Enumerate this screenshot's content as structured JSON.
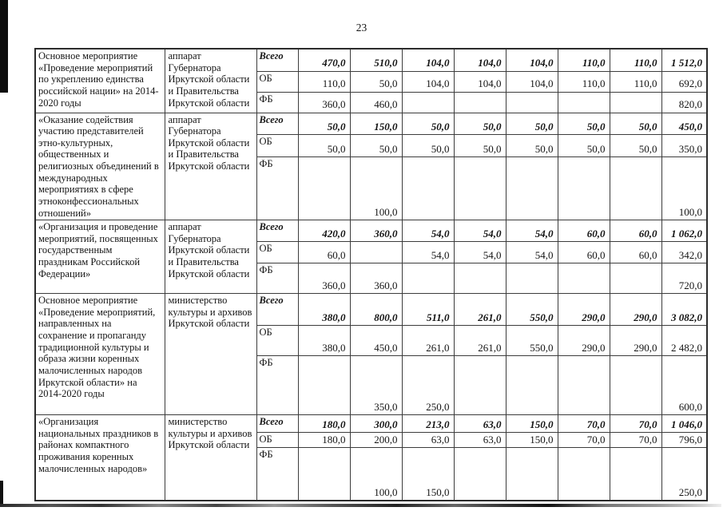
{
  "page": {
    "number": "23"
  },
  "table": {
    "budget_labels": [
      "Всего",
      "ОБ",
      "ФБ"
    ],
    "rows": [
      {
        "name": "Основное мероприятие «Проведение мероприятий по укреплению единства российской нации» на 2014-2020 годы",
        "agency": "аппарат Губернатора Иркутской области и Правительства Иркутской области",
        "vsego": [
          "470,0",
          "510,0",
          "104,0",
          "104,0",
          "104,0",
          "110,0",
          "110,0",
          "1 512,0"
        ],
        "ob": [
          "110,0",
          "50,0",
          "104,0",
          "104,0",
          "104,0",
          "110,0",
          "110,0",
          "692,0"
        ],
        "fb": [
          "360,0",
          "460,0",
          "",
          "",
          "",
          "",
          "",
          "820,0"
        ]
      },
      {
        "name": "«Оказание содействия участию представителей этно-культурных, общественных и религиозных объединений в международных мероприятиях в сфере этноконфессиональных отношений»",
        "agency": "аппарат Губернатора Иркутской области и Правительства Иркутской области",
        "vsego": [
          "50,0",
          "150,0",
          "50,0",
          "50,0",
          "50,0",
          "50,0",
          "50,0",
          "450,0"
        ],
        "ob": [
          "50,0",
          "50,0",
          "50,0",
          "50,0",
          "50,0",
          "50,0",
          "50,0",
          "350,0"
        ],
        "fb": [
          "",
          "100,0",
          "",
          "",
          "",
          "",
          "",
          "100,0"
        ]
      },
      {
        "name": "«Организация и проведение мероприятий, посвященных государственным праздникам Российской Федерации»",
        "agency": "аппарат Губернатора Иркутской области и Правительства Иркутской области",
        "vsego": [
          "420,0",
          "360,0",
          "54,0",
          "54,0",
          "54,0",
          "60,0",
          "60,0",
          "1 062,0"
        ],
        "ob": [
          "60,0",
          "",
          "54,0",
          "54,0",
          "54,0",
          "60,0",
          "60,0",
          "342,0"
        ],
        "fb": [
          "360,0",
          "360,0",
          "",
          "",
          "",
          "",
          "",
          "720,0"
        ]
      },
      {
        "name": "Основное мероприятие «Проведение мероприятий, направленных на сохранение и пропаганду традиционной культуры и образа жизни коренных малочисленных народов Иркутской области» на 2014-2020 годы",
        "agency": "министерство культуры и архивов Иркутской области",
        "vsego": [
          "380,0",
          "800,0",
          "511,0",
          "261,0",
          "550,0",
          "290,0",
          "290,0",
          "3 082,0"
        ],
        "ob": [
          "380,0",
          "450,0",
          "261,0",
          "261,0",
          "550,0",
          "290,0",
          "290,0",
          "2 482,0"
        ],
        "fb": [
          "",
          "350,0",
          "250,0",
          "",
          "",
          "",
          "",
          "600,0"
        ]
      },
      {
        "name": "«Организация национальных праздников в районах компактного проживания коренных малочисленных народов»",
        "agency": "министерство культуры и архивов Иркутской области",
        "vsego": [
          "180,0",
          "300,0",
          "213,0",
          "63,0",
          "150,0",
          "70,0",
          "70,0",
          "1 046,0"
        ],
        "ob": [
          "180,0",
          "200,0",
          "63,0",
          "63,0",
          "150,0",
          "70,0",
          "70,0",
          "796,0"
        ],
        "fb": [
          "",
          "100,0",
          "150,0",
          "",
          "",
          "",
          "",
          "250,0"
        ]
      }
    ]
  }
}
